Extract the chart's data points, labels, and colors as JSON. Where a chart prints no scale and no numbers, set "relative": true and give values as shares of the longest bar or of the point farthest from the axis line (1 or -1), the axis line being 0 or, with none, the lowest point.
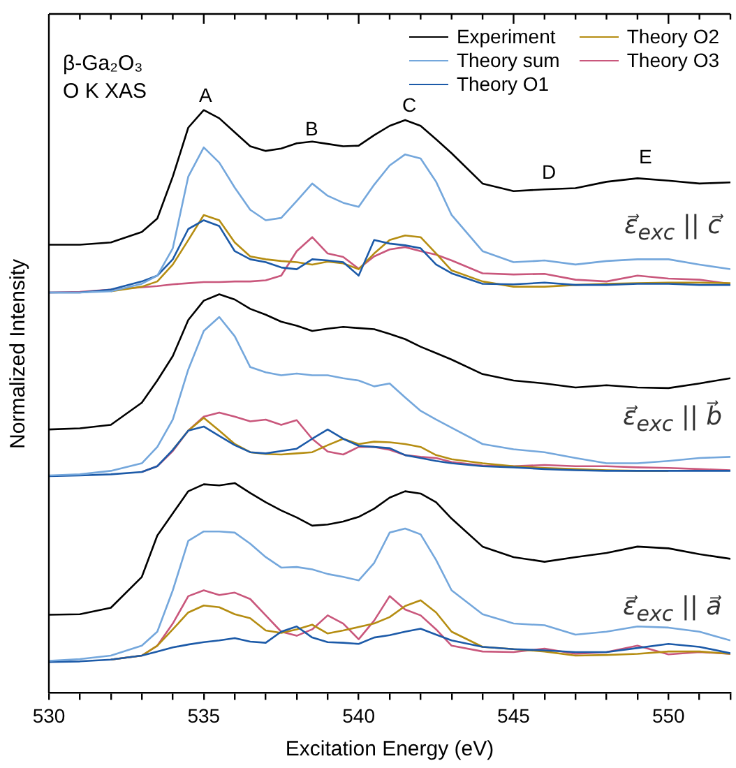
{
  "chart_data": {
    "type": "line",
    "title": "β-Ga₂O₃",
    "subtitle": "O K XAS",
    "xlabel": "Excitation Energy (eV)",
    "ylabel": "Normalized Intensity",
    "relative": true,
    "legend": "top right",
    "xlim": [
      530,
      552
    ],
    "xticks": [
      530,
      {
        "value": 531,
        "label": null
      },
      {
        "value": 532,
        "label": null
      },
      {
        "value": 533,
        "label": null
      },
      {
        "value": 534,
        "label": null
      },
      535,
      {
        "value": 536,
        "label": null
      },
      {
        "value": 537,
        "label": null
      },
      {
        "value": 538,
        "label": null
      },
      {
        "value": 539,
        "label": null
      },
      540,
      {
        "value": 541,
        "label": null
      },
      {
        "value": 542,
        "label": null
      },
      {
        "value": 543,
        "label": null
      },
      {
        "value": 544,
        "label": null
      },
      545,
      {
        "value": 546,
        "label": null
      },
      {
        "value": 547,
        "label": null
      },
      {
        "value": 548,
        "label": null
      },
      {
        "value": 549,
        "label": null
      },
      550,
      {
        "value": 551,
        "label": null
      },
      {
        "value": 552,
        "label": null
      }
    ],
    "x": [
      530,
      531,
      532,
      533,
      533.5,
      534,
      534.5,
      535,
      535.5,
      536,
      536.5,
      537,
      537.5,
      538,
      538.5,
      539,
      539.5,
      540,
      540.5,
      541,
      541.5,
      542,
      542.5,
      543,
      544,
      545,
      546,
      547,
      548,
      549,
      550,
      551,
      552
    ],
    "series": [
      {
        "name": "Experiment",
        "color": "#000000",
        "values": [
          0.769,
          0.769,
          0.773,
          0.791,
          0.814,
          0.886,
          0.97,
          1.0,
          0.986,
          0.962,
          0.938,
          0.93,
          0.934,
          0.943,
          0.946,
          0.942,
          0.938,
          0.939,
          0.957,
          0.973,
          0.983,
          0.973,
          0.95,
          0.926,
          0.874,
          0.861,
          0.864,
          0.866,
          0.877,
          0.883,
          0.879,
          0.874,
          0.876
        ]
      },
      {
        "name": "Theory sum",
        "color": "#74a7dc",
        "values": [
          0.687,
          0.687,
          0.689,
          0.702,
          0.716,
          0.763,
          0.886,
          0.936,
          0.91,
          0.867,
          0.829,
          0.811,
          0.815,
          0.844,
          0.874,
          0.853,
          0.841,
          0.834,
          0.872,
          0.905,
          0.924,
          0.917,
          0.877,
          0.82,
          0.758,
          0.739,
          0.742,
          0.735,
          0.741,
          0.744,
          0.744,
          0.735,
          0.727
        ]
      },
      {
        "name": "Theory O1",
        "color": "#1c5aa8",
        "values": [
          0.687,
          0.687,
          0.692,
          0.706,
          0.716,
          0.744,
          0.796,
          0.811,
          0.801,
          0.758,
          0.744,
          0.739,
          0.73,
          0.727,
          0.744,
          0.742,
          0.739,
          0.716,
          0.777,
          0.771,
          0.768,
          0.763,
          0.735,
          0.72,
          0.702,
          0.701,
          0.704,
          0.7,
          0.7,
          0.702,
          0.702,
          0.7,
          0.7
        ]
      },
      {
        "name": "Theory O2",
        "color": "#b58d12",
        "values": [
          null,
          null,
          0.689,
          0.697,
          0.706,
          0.735,
          0.777,
          0.82,
          0.811,
          0.773,
          0.749,
          0.744,
          0.741,
          0.739,
          0.735,
          0.74,
          0.737,
          0.727,
          0.754,
          0.777,
          0.785,
          0.782,
          0.754,
          0.725,
          0.706,
          0.697,
          0.697,
          0.7,
          0.702,
          0.703,
          0.704,
          0.704,
          0.703
        ]
      },
      {
        "name": "Theory O3",
        "color": "#c9577c",
        "values": [
          0.687,
          0.688,
          0.692,
          0.696,
          0.698,
          0.701,
          0.703,
          0.705,
          0.705,
          0.706,
          0.706,
          0.708,
          0.716,
          0.758,
          0.782,
          0.754,
          0.748,
          0.728,
          0.749,
          0.761,
          0.765,
          0.758,
          0.752,
          0.742,
          0.72,
          0.718,
          0.719,
          0.709,
          0.706,
          0.716,
          0.711,
          0.709,
          0.702
        ]
      },
      {
        "color": "#000000",
        "values": [
          0.452,
          0.454,
          0.46,
          0.498,
          0.536,
          0.578,
          0.64,
          0.673,
          0.684,
          0.675,
          0.659,
          0.649,
          0.637,
          0.63,
          0.621,
          0.625,
          0.628,
          0.626,
          0.624,
          0.616,
          0.607,
          0.594,
          0.583,
          0.572,
          0.547,
          0.536,
          0.531,
          0.524,
          0.528,
          0.524,
          0.523,
          0.531,
          0.54
        ]
      },
      {
        "color": "#74a7dc",
        "values": [
          0.373,
          0.375,
          0.381,
          0.394,
          0.422,
          0.469,
          0.555,
          0.621,
          0.645,
          0.612,
          0.559,
          0.55,
          0.545,
          0.548,
          0.545,
          0.545,
          0.54,
          0.536,
          0.526,
          0.531,
          0.507,
          0.484,
          0.469,
          0.455,
          0.427,
          0.418,
          0.413,
          0.403,
          0.394,
          0.394,
          0.398,
          0.403,
          0.405
        ]
      },
      {
        "color": "#1c5aa8",
        "values": [
          0.372,
          0.373,
          0.375,
          0.379,
          0.389,
          0.417,
          0.45,
          0.457,
          0.441,
          0.425,
          0.413,
          0.411,
          0.415,
          0.419,
          0.436,
          0.452,
          0.436,
          0.424,
          0.422,
          0.42,
          0.408,
          0.403,
          0.398,
          0.394,
          0.389,
          0.387,
          0.384,
          0.382,
          0.381,
          0.381,
          0.381,
          0.381,
          0.381
        ]
      },
      {
        "color": "#b58d12",
        "values": [
          null,
          null,
          null,
          null,
          null,
          0.417,
          0.45,
          0.472,
          0.45,
          0.427,
          0.413,
          0.41,
          0.409,
          0.411,
          0.413,
          0.425,
          0.436,
          0.427,
          0.431,
          0.43,
          0.427,
          0.422,
          0.408,
          0.401,
          0.394,
          0.389,
          0.386,
          0.384,
          0.382,
          0.381,
          0.381,
          null,
          null
        ]
      },
      {
        "color": "#c9577c",
        "values": [
          null,
          null,
          null,
          0.379,
          0.389,
          0.415,
          0.45,
          0.474,
          0.481,
          0.474,
          0.466,
          0.469,
          0.46,
          0.468,
          0.436,
          0.414,
          0.409,
          0.422,
          0.422,
          0.417,
          0.408,
          0.405,
          0.403,
          0.396,
          0.39,
          0.389,
          0.391,
          0.389,
          0.389,
          0.387,
          0.386,
          0.384,
          0.382
        ]
      },
      {
        "color": "#000000",
        "values": [
          0.134,
          0.135,
          0.146,
          0.199,
          0.27,
          0.308,
          0.346,
          0.358,
          0.356,
          0.36,
          0.343,
          0.327,
          0.313,
          0.301,
          0.287,
          0.289,
          0.294,
          0.302,
          0.316,
          0.335,
          0.346,
          0.342,
          0.327,
          0.299,
          0.251,
          0.233,
          0.225,
          0.233,
          0.24,
          0.251,
          0.248,
          0.238,
          0.23
        ]
      },
      {
        "color": "#74a7dc",
        "values": [
          0.055,
          0.058,
          0.064,
          0.081,
          0.105,
          0.176,
          0.261,
          0.277,
          0.277,
          0.275,
          0.256,
          0.233,
          0.215,
          0.216,
          0.212,
          0.204,
          0.199,
          0.193,
          0.223,
          0.275,
          0.282,
          0.272,
          0.228,
          0.176,
          0.135,
          0.119,
          0.116,
          0.1,
          0.105,
          0.114,
          0.112,
          0.105,
          0.09
        ]
      },
      {
        "color": "#1c5aa8",
        "values": [
          0.053,
          0.054,
          0.057,
          0.064,
          0.071,
          0.078,
          0.083,
          0.087,
          0.09,
          0.094,
          0.088,
          0.086,
          0.105,
          0.114,
          0.095,
          0.087,
          0.086,
          0.084,
          0.095,
          0.099,
          0.105,
          0.11,
          0.1,
          0.09,
          0.079,
          0.075,
          0.073,
          0.07,
          0.07,
          0.077,
          0.084,
          0.079,
          0.068
        ]
      },
      {
        "color": "#b58d12",
        "values": [
          null,
          null,
          0.057,
          0.064,
          0.081,
          0.109,
          0.138,
          0.15,
          0.147,
          0.135,
          0.128,
          0.107,
          0.103,
          0.109,
          0.117,
          0.102,
          0.107,
          0.113,
          0.119,
          0.13,
          0.149,
          0.159,
          0.138,
          0.105,
          0.079,
          0.075,
          0.071,
          0.064,
          0.065,
          0.067,
          0.071,
          0.071,
          0.067
        ]
      },
      {
        "color": "#c9577c",
        "values": [
          null,
          null,
          0.057,
          0.064,
          0.081,
          0.119,
          0.166,
          0.176,
          0.168,
          0.172,
          0.161,
          0.133,
          0.105,
          0.098,
          0.109,
          0.133,
          0.119,
          0.092,
          0.124,
          0.166,
          0.143,
          0.133,
          0.109,
          0.081,
          0.071,
          0.07,
          0.076,
          0.067,
          0.07,
          0.081,
          0.066,
          0.07,
          0.067
        ]
      }
    ],
    "annotations": [
      "A",
      "B",
      "C",
      "D",
      "E",
      "ε⃗$_{exc}$ || c⃗",
      "ε⃗$_{exc}$ || b⃗",
      "ε⃗$_{exc}$ || a⃗"
    ]
  }
}
